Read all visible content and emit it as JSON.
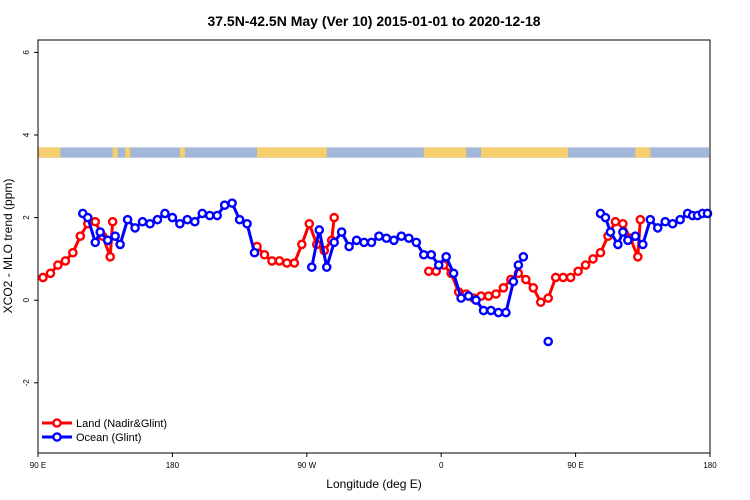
{
  "chart_data": {
    "type": "line",
    "title": "37.5N-42.5N May (Ver 10)   2015-01-01 to 2020-12-18",
    "xlabel": "Longitude (deg E)",
    "ylabel": "XCO2 - MLO trend (ppm)",
    "xlim": [
      -90,
      180
    ],
    "ylim": [
      -3.7,
      6.3
    ],
    "x_ticks": [
      {
        "value": -90,
        "label": "90 E"
      },
      {
        "value": -36,
        "label": "180"
      },
      {
        "value": 18,
        "label": "90 W"
      },
      {
        "value": 72,
        "label": "0"
      },
      {
        "value": 126,
        "label": "90 E"
      },
      {
        "value": 180,
        "label": "180"
      }
    ],
    "y_ticks": [
      {
        "value": 0,
        "label": "0"
      },
      {
        "value": 2,
        "label": "2"
      },
      {
        "value": 4,
        "label": "4"
      },
      {
        "value": 6,
        "label": "6"
      },
      {
        "value": -2,
        "label": "-2"
      }
    ],
    "grid": false,
    "legend_position": "bottom-left",
    "map_strip": {
      "y_range": [
        3.45,
        3.7
      ],
      "ocean_color": "#a3b8d8",
      "land_color": "#f5cf6e",
      "land_segments": [
        [
          -90,
          -81
        ],
        [
          -60,
          -58
        ],
        [
          -55,
          -53
        ],
        [
          -33,
          -31
        ],
        [
          -2,
          26
        ],
        [
          65,
          82
        ],
        [
          88,
          123
        ],
        [
          150,
          156
        ]
      ]
    },
    "series": [
      {
        "name": "Land (Nadir&Glint)",
        "color": "#ff0000",
        "segments": [
          [
            [
              -88,
              0.55
            ],
            [
              -85,
              0.65
            ],
            [
              -82,
              0.85
            ],
            [
              -79,
              0.95
            ],
            [
              -76,
              1.15
            ],
            [
              -73,
              1.55
            ],
            [
              -70,
              1.85
            ],
            [
              -67,
              1.9
            ],
            [
              -64,
              1.55
            ],
            [
              -61,
              1.05
            ],
            [
              -60,
              1.9
            ]
          ],
          [
            [
              -2,
              1.3
            ],
            [
              1,
              1.1
            ],
            [
              4,
              0.95
            ],
            [
              7,
              0.95
            ],
            [
              10,
              0.9
            ],
            [
              13,
              0.9
            ],
            [
              16,
              1.35
            ],
            [
              19,
              1.85
            ],
            [
              22,
              1.35
            ],
            [
              25,
              1.2
            ],
            [
              28,
              1.45
            ],
            [
              29,
              2.0
            ]
          ],
          [
            [
              67,
              0.7
            ],
            [
              70,
              0.7
            ],
            [
              73,
              0.85
            ],
            [
              76,
              0.65
            ],
            [
              79,
              0.2
            ],
            [
              82,
              0.15
            ],
            [
              85,
              0.05
            ],
            [
              88,
              0.1
            ],
            [
              91,
              0.1
            ],
            [
              94,
              0.15
            ],
            [
              97,
              0.3
            ],
            [
              100,
              0.5
            ],
            [
              103,
              0.65
            ],
            [
              106,
              0.5
            ],
            [
              109,
              0.3
            ],
            [
              112,
              -0.05
            ],
            [
              115,
              0.05
            ],
            [
              118,
              0.55
            ],
            [
              121,
              0.55
            ],
            [
              124,
              0.55
            ],
            [
              127,
              0.7
            ],
            [
              130,
              0.85
            ],
            [
              133,
              1.0
            ],
            [
              136,
              1.15
            ],
            [
              139,
              1.55
            ],
            [
              142,
              1.9
            ],
            [
              145,
              1.85
            ],
            [
              148,
              1.5
            ],
            [
              151,
              1.05
            ],
            [
              152,
              1.95
            ]
          ]
        ]
      },
      {
        "name": "Ocean (Glint)",
        "color": "#0000ff",
        "segments": [
          [
            [
              -72,
              2.1
            ],
            [
              -70,
              2.0
            ],
            [
              -67,
              1.4
            ],
            [
              -65,
              1.65
            ],
            [
              -62,
              1.45
            ],
            [
              -59,
              1.55
            ],
            [
              -57,
              1.35
            ],
            [
              -54,
              1.95
            ],
            [
              -51,
              1.75
            ],
            [
              -48,
              1.9
            ],
            [
              -45,
              1.85
            ],
            [
              -42,
              1.95
            ],
            [
              -39,
              2.1
            ],
            [
              -36,
              2.0
            ],
            [
              -33,
              1.85
            ],
            [
              -30,
              1.95
            ],
            [
              -27,
              1.9
            ],
            [
              -24,
              2.1
            ],
            [
              -21,
              2.05
            ],
            [
              -18,
              2.05
            ],
            [
              -15,
              2.3
            ],
            [
              -12,
              2.35
            ],
            [
              -9,
              1.95
            ],
            [
              -6,
              1.85
            ],
            [
              -3,
              1.15
            ]
          ],
          [
            [
              20,
              0.8
            ],
            [
              23,
              1.7
            ],
            [
              26,
              0.8
            ],
            [
              29,
              1.4
            ],
            [
              32,
              1.65
            ],
            [
              35,
              1.3
            ],
            [
              38,
              1.45
            ],
            [
              41,
              1.4
            ],
            [
              44,
              1.4
            ],
            [
              47,
              1.55
            ],
            [
              50,
              1.5
            ],
            [
              53,
              1.45
            ],
            [
              56,
              1.55
            ],
            [
              59,
              1.5
            ],
            [
              62,
              1.4
            ],
            [
              65,
              1.1
            ],
            [
              68,
              1.1
            ],
            [
              71,
              0.85
            ],
            [
              74,
              1.05
            ],
            [
              77,
              0.65
            ],
            [
              80,
              0.05
            ],
            [
              83,
              0.1
            ],
            [
              86,
              0.0
            ],
            [
              89,
              -0.25
            ],
            [
              92,
              -0.25
            ],
            [
              95,
              -0.3
            ],
            [
              98,
              -0.3
            ],
            [
              101,
              0.45
            ],
            [
              103,
              0.85
            ],
            [
              105,
              1.05
            ]
          ],
          [
            [
              136,
              2.1
            ],
            [
              138,
              2.0
            ],
            [
              140,
              1.65
            ],
            [
              143,
              1.35
            ],
            [
              145,
              1.65
            ],
            [
              147,
              1.45
            ],
            [
              150,
              1.55
            ],
            [
              153,
              1.35
            ],
            [
              156,
              1.95
            ],
            [
              159,
              1.75
            ],
            [
              162,
              1.9
            ],
            [
              165,
              1.85
            ],
            [
              168,
              1.95
            ],
            [
              171,
              2.1
            ],
            [
              173,
              2.05
            ],
            [
              175,
              2.05
            ],
            [
              177,
              2.1
            ],
            [
              179,
              2.1
            ]
          ],
          [
            [
              115,
              -1.0
            ]
          ]
        ]
      }
    ]
  }
}
